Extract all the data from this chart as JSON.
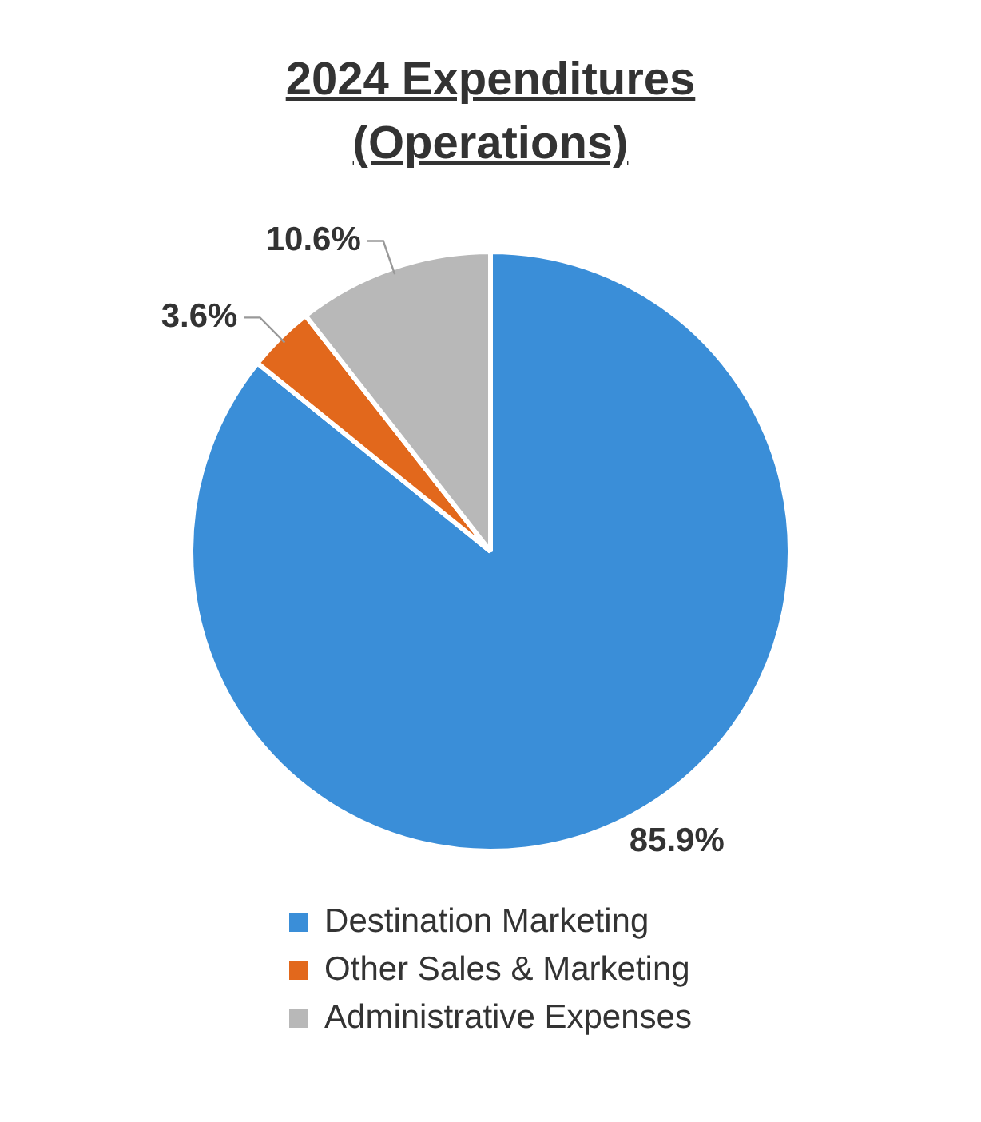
{
  "chart_data": {
    "type": "pie",
    "title": "2024 Expenditures (Operations)",
    "categories": [
      "Destination Marketing",
      "Other Sales & Marketing",
      "Administrative Expenses"
    ],
    "values": [
      85.9,
      3.6,
      10.6
    ],
    "colors": [
      "#3a8ed8",
      "#e2681c",
      "#b8b8b8"
    ],
    "value_labels": [
      "85.9%",
      "3.6%",
      "10.6%"
    ],
    "legend": "bottom"
  }
}
